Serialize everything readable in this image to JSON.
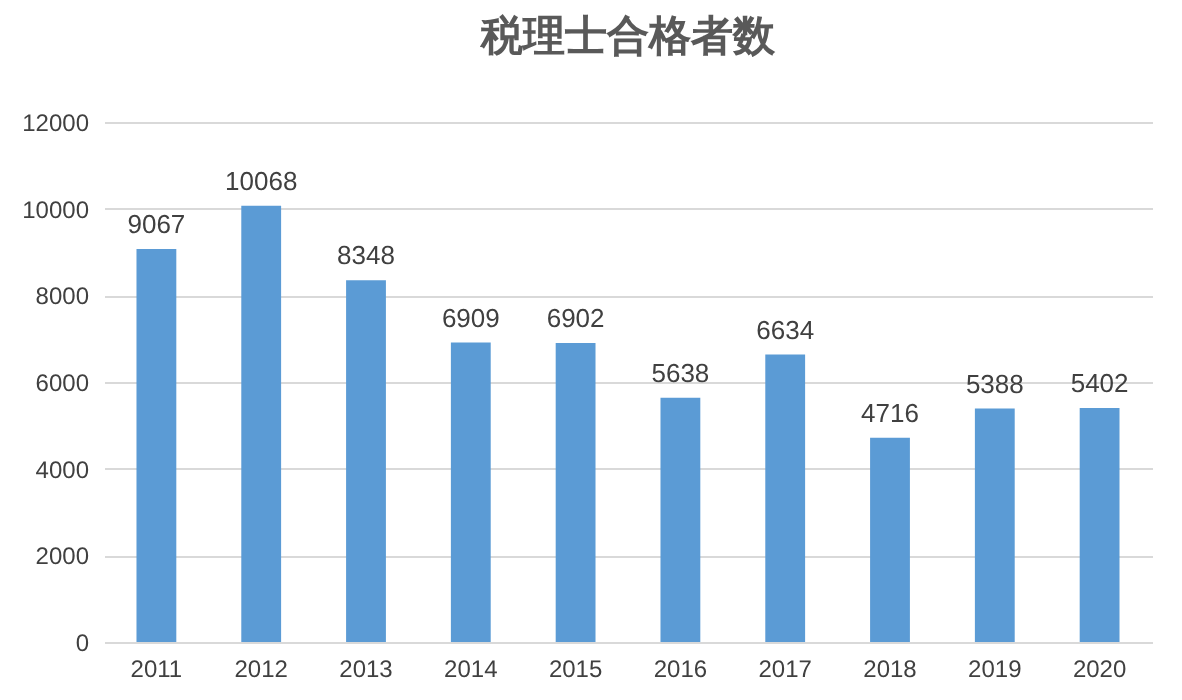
{
  "chart_data": {
    "type": "bar",
    "title": "税理士合格者数",
    "categories": [
      "2011",
      "2012",
      "2013",
      "2014",
      "2015",
      "2016",
      "2017",
      "2018",
      "2019",
      "2020"
    ],
    "values": [
      9067,
      10068,
      8348,
      6909,
      6902,
      5638,
      6634,
      4716,
      5388,
      5402
    ],
    "color": "#5b9bd5",
    "ylim": [
      0,
      12000
    ],
    "yticks": [
      0,
      2000,
      4000,
      6000,
      8000,
      10000,
      12000
    ],
    "grid": "y",
    "data_labels": true
  }
}
